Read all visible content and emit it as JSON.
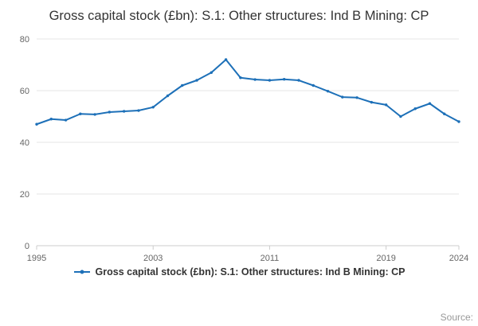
{
  "page": {
    "title": "Gross capital stock (£bn): S.1: Other structures: Ind B Mining: CP",
    "source_label": "Source:"
  },
  "legend": {
    "label": "Gross capital stock (£bn): S.1: Other structures: Ind B Mining: CP"
  },
  "colors": {
    "line": "#1d70b8",
    "grid": "#e6e6e6",
    "axis": "#cccccc",
    "tick_text": "#666666",
    "title_text": "#333333",
    "source_text": "#999999"
  },
  "chart_data": {
    "type": "line",
    "title": "Gross capital stock (£bn): S.1: Other structures: Ind B Mining: CP",
    "x": [
      1995,
      1996,
      1997,
      1998,
      1999,
      2000,
      2001,
      2002,
      2003,
      2004,
      2005,
      2006,
      2007,
      2008,
      2009,
      2010,
      2011,
      2012,
      2013,
      2014,
      2015,
      2016,
      2017,
      2018,
      2019,
      2020,
      2021,
      2022,
      2023,
      2024
    ],
    "series": [
      {
        "name": "Gross capital stock (£bn): S.1: Other structures: Ind B Mining: CP",
        "values": [
          47,
          49,
          48.6,
          51,
          50.8,
          51.7,
          52,
          52.3,
          53.6,
          58,
          62,
          64,
          67,
          72,
          65,
          64.3,
          64,
          64.4,
          64,
          62,
          59.8,
          57.5,
          57.3,
          55.5,
          54.5,
          50,
          53,
          55,
          51,
          48
        ]
      }
    ],
    "xticks": [
      1995,
      2003,
      2011,
      2019,
      2024
    ],
    "yticks": [
      0,
      20,
      40,
      60,
      80
    ],
    "ylim": [
      0,
      80
    ],
    "xlabel": "",
    "ylabel": "",
    "grid": true,
    "legend_position": "bottom"
  }
}
